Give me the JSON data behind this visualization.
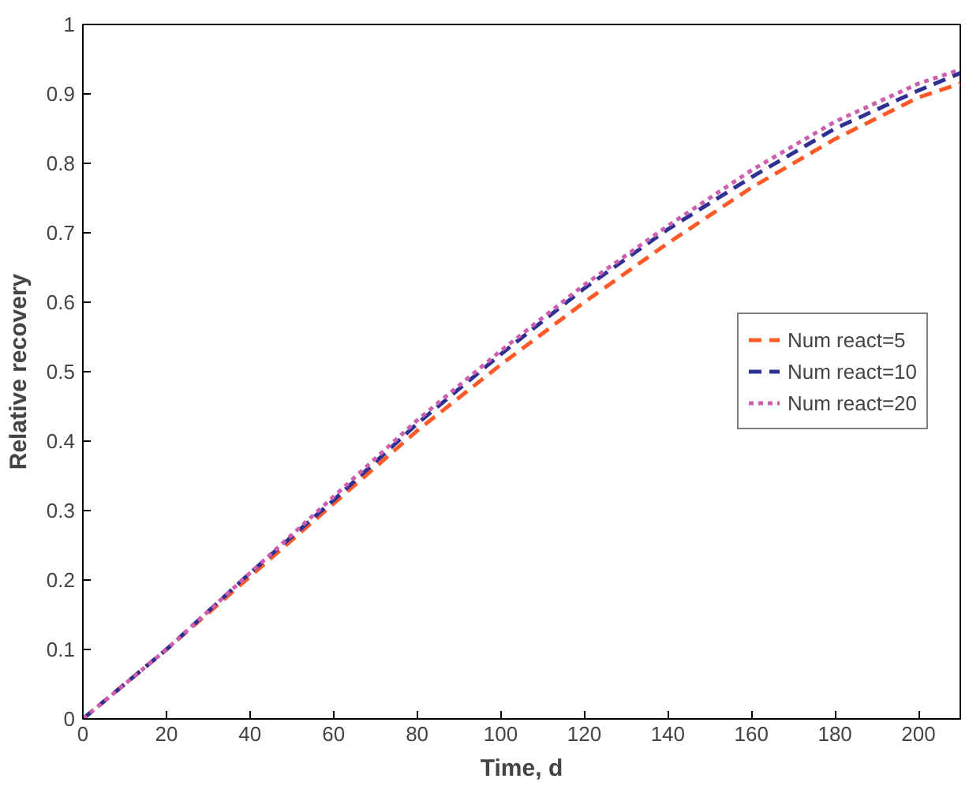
{
  "chart_data": {
    "type": "line",
    "xlabel": "Time, d",
    "ylabel": "Relative recovery",
    "x": [
      0,
      20,
      40,
      60,
      80,
      100,
      120,
      140,
      160,
      180,
      200,
      210
    ],
    "series": [
      {
        "name": "Num react=5",
        "color": "#ff5a28",
        "line_style": "dashed",
        "values": [
          0,
          0.1,
          0.205,
          0.31,
          0.415,
          0.51,
          0.6,
          0.685,
          0.765,
          0.835,
          0.895,
          0.915
        ]
      },
      {
        "name": "Num react=10",
        "color": "#2e3191",
        "line_style": "dashed",
        "values": [
          0,
          0.1,
          0.21,
          0.315,
          0.425,
          0.525,
          0.62,
          0.705,
          0.78,
          0.85,
          0.905,
          0.93
        ]
      },
      {
        "name": "Num react=20",
        "color": "#cc5fb0",
        "line_style": "dotted",
        "values": [
          0,
          0.1,
          0.21,
          0.32,
          0.43,
          0.53,
          0.625,
          0.71,
          0.79,
          0.86,
          0.915,
          0.935
        ]
      }
    ],
    "xlim": [
      0,
      210
    ],
    "ylim": [
      0,
      1
    ],
    "xticks": [
      0,
      20,
      40,
      60,
      80,
      100,
      120,
      140,
      160,
      180,
      200
    ],
    "yticks": [
      0,
      0.1,
      0.2,
      0.3,
      0.4,
      0.5,
      0.6,
      0.7,
      0.8,
      0.9,
      1
    ],
    "grid": false,
    "legend": "right",
    "marker": "none"
  }
}
